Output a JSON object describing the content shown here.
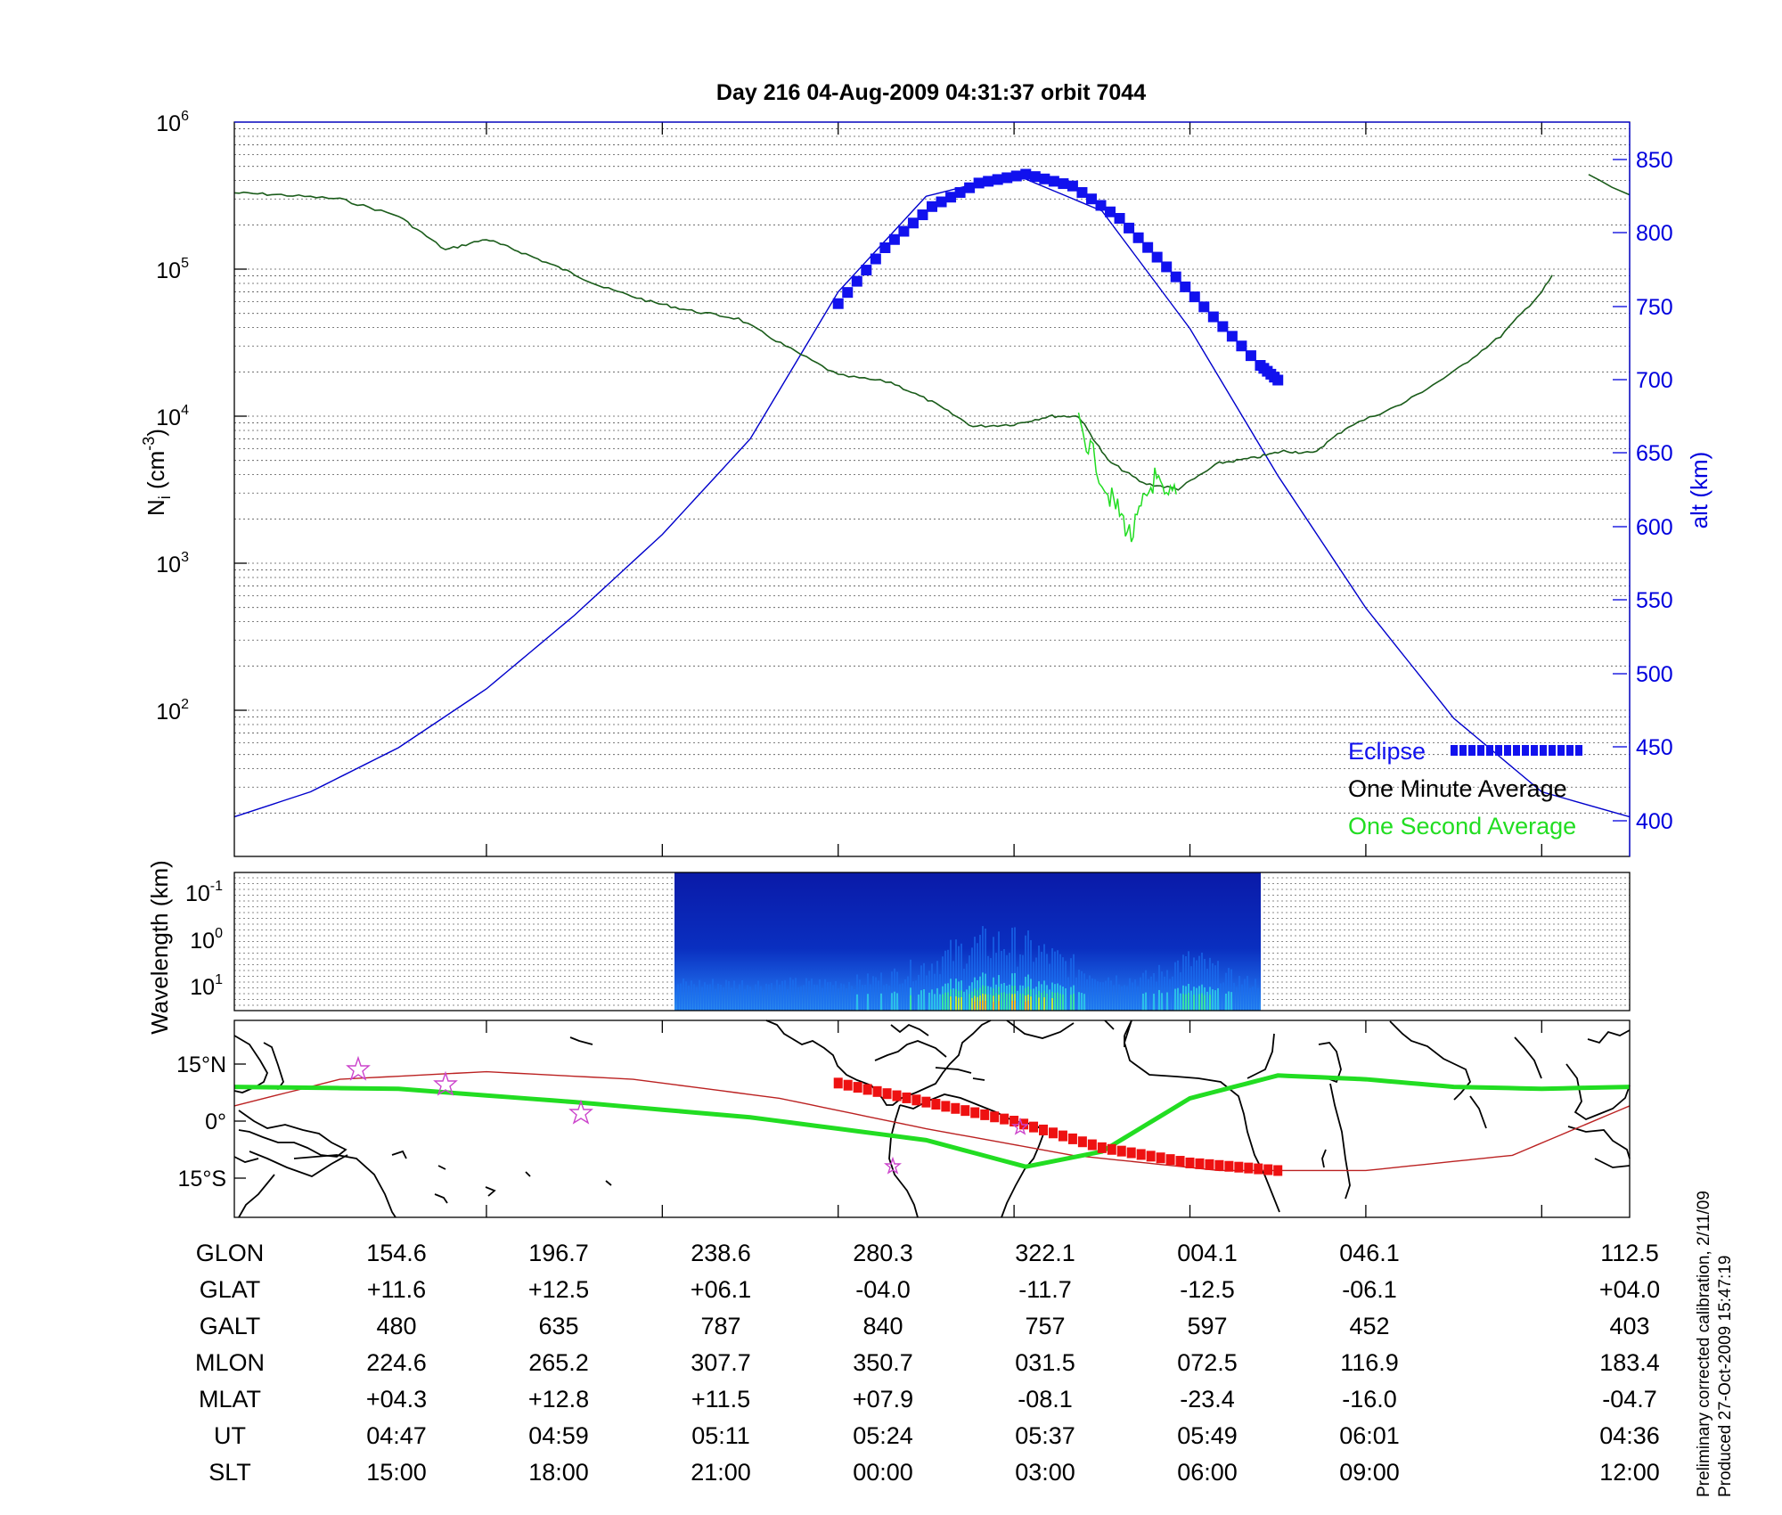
{
  "title": "Day 216  04-Aug-2009 04:31:37   orbit 7044",
  "colors": {
    "density_minute": "#1a5c1a",
    "density_second": "#22dd22",
    "altitude": "#0000cc",
    "eclipse": "#1111ee",
    "track": "#22dd22",
    "ref_track": "#bb2222",
    "track_eclipse": "#ee1111",
    "stars": "#cc44cc"
  },
  "top_panel": {
    "ylabel_base": "N",
    "ylabel_sub": "i",
    "ylabel_unit": " (cm",
    "ylabel_exp": "-3",
    "ylabel_end": ")",
    "y_ticks": [
      {
        "base": "10",
        "exp": "6",
        "log": 6
      },
      {
        "base": "10",
        "exp": "5",
        "log": 5
      },
      {
        "base": "10",
        "exp": "4",
        "log": 4
      },
      {
        "base": "10",
        "exp": "3",
        "log": 3
      },
      {
        "base": "10",
        "exp": "2",
        "log": 2
      }
    ],
    "right_label": "alt (km)",
    "right_ticks": [
      "850",
      "800",
      "750",
      "700",
      "650",
      "600",
      "550",
      "500",
      "450",
      "400"
    ],
    "legend": {
      "eclipse": "Eclipse",
      "minute": "One Minute Average",
      "second": "One Second Average"
    }
  },
  "middle_panel": {
    "ylabel": "Wavelength (km)",
    "y_ticks": [
      {
        "base": "10",
        "exp": "-1"
      },
      {
        "base": "10",
        "exp": "0"
      },
      {
        "base": "10",
        "exp": "1"
      }
    ]
  },
  "map_panel": {
    "lat_ticks": [
      "15°N",
      "0°",
      "15°S"
    ]
  },
  "table": {
    "row_labels": [
      "GLON",
      "GLAT",
      "GALT",
      "MLON",
      "MLAT",
      "UT",
      "SLT"
    ],
    "columns": [
      [
        "154.6",
        "+11.6",
        "480",
        "224.6",
        "+04.3",
        "04:47",
        "15:00"
      ],
      [
        "196.7",
        "+12.5",
        "635",
        "265.2",
        "+12.8",
        "04:59",
        "18:00"
      ],
      [
        "238.6",
        "+06.1",
        "787",
        "307.7",
        "+11.5",
        "05:11",
        "21:00"
      ],
      [
        "280.3",
        "-04.0",
        "840",
        "350.7",
        "+07.9",
        "05:24",
        "00:00"
      ],
      [
        "322.1",
        "-11.7",
        "757",
        "031.5",
        "-08.1",
        "05:37",
        "03:00"
      ],
      [
        "004.1",
        "-12.5",
        "597",
        "072.5",
        "-23.4",
        "05:49",
        "06:00"
      ],
      [
        "046.1",
        "-06.1",
        "452",
        "116.9",
        "-16.0",
        "06:01",
        "09:00"
      ],
      [
        "112.5",
        "+04.0",
        "403",
        "183.4",
        "-04.7",
        "04:36",
        "12:00"
      ]
    ]
  },
  "side_note": {
    "line1": "Preliminary corrected calibration, 2/11/09",
    "line2": "Produced 27-Oct-2009 15:47:19"
  },
  "chart_data": [
    {
      "type": "line",
      "title": "Day 216  04-Aug-2009 04:31:37   orbit 7044",
      "ylabel": "Ni (cm-3)",
      "yscale": "log",
      "ylim": [
        20,
        1000000
      ],
      "y2label": "alt (km)",
      "y2lim": [
        395,
        875
      ],
      "x_tick_labels": [
        "15:00",
        "18:00",
        "21:00",
        "00:00",
        "03:00",
        "06:00",
        "09:00",
        "12:00"
      ],
      "series": [
        {
          "name": "One Minute Average",
          "x_slt": [
            10.7,
            11.5,
            12.5,
            13.5,
            14.3,
            15.0,
            15.6,
            16.3,
            17.0,
            17.8,
            18.5,
            19.3,
            20.1,
            21.0,
            21.9,
            22.6,
            23.3,
            24.0,
            24.6,
            25.1,
            25.6,
            26.2,
            26.8,
            27.5,
            28.1,
            28.6,
            29.1,
            29.7,
            30.6,
            31.5,
            32.3,
            33.0,
            33.6,
            34.3
          ],
          "y_ni": [
            330000,
            320000,
            300000,
            230000,
            135000,
            160000,
            130000,
            100000,
            75000,
            60000,
            52000,
            46000,
            30000,
            19000,
            17000,
            12500,
            8500,
            8800,
            10000,
            10000,
            5000,
            3500,
            3200,
            4800,
            5200,
            5800,
            5600,
            8500,
            12000,
            20000,
            35000,
            70000,
            160000,
            300000
          ]
        },
        {
          "name": "One Second Average",
          "x_slt": [
            25.1,
            25.3,
            25.6,
            25.8,
            26.0,
            26.2,
            26.4,
            26.6,
            26.8
          ],
          "y_ni": [
            9000,
            6000,
            3000,
            2200,
            1500,
            2500,
            3800,
            2600,
            3500
          ]
        },
        {
          "name": "alt",
          "x_slt": [
            10.7,
            12.0,
            13.5,
            15.0,
            16.5,
            18.0,
            19.5,
            21.0,
            22.5,
            24.0,
            25.5,
            27.0,
            28.5,
            30.0,
            31.5,
            33.0,
            34.5
          ],
          "y_alt_km": [
            403,
            420,
            450,
            490,
            540,
            595,
            660,
            760,
            825,
            840,
            815,
            735,
            635,
            545,
            470,
            420,
            403
          ]
        },
        {
          "name": "Eclipse",
          "x_slt": [
            21.0,
            21.8,
            22.6,
            23.4,
            24.2,
            25.0,
            25.8,
            26.6,
            27.4,
            28.2,
            28.5
          ],
          "y_alt_km": [
            752,
            790,
            818,
            834,
            840,
            832,
            810,
            777,
            743,
            710,
            700
          ]
        }
      ]
    },
    {
      "type": "heatmap",
      "ylabel": "Wavelength (km)",
      "y_ticks": [
        "10-1",
        "100",
        "101"
      ],
      "data_coverage_slt": [
        21.0,
        29.6
      ]
    },
    {
      "type": "line",
      "ylabel": "latitude",
      "y_ticks": [
        "15°N",
        "0°",
        "15°S"
      ],
      "ylim": [
        -25,
        25
      ],
      "series": [
        {
          "name": "track",
          "x_slt": [
            10.7,
            13.5,
            16.5,
            19.5,
            22.5,
            24.2,
            25.5,
            27.0,
            28.5,
            30.0,
            31.5,
            33.0,
            34.5
          ],
          "y_lat": [
            9,
            8.5,
            5,
            1,
            -5,
            -12,
            -8,
            6,
            12,
            11,
            9,
            8.5,
            9
          ]
        },
        {
          "name": "reference",
          "x_slt": [
            10.7,
            12.5,
            15.0,
            17.5,
            20.0,
            22.5,
            25.0,
            27.5,
            30.0,
            32.5,
            34.5
          ],
          "y_lat": [
            4,
            11,
            13,
            11,
            6,
            -2,
            -9,
            -13,
            -13,
            -9,
            4
          ]
        },
        {
          "name": "eclipse track",
          "x_slt": [
            21.0,
            22.5,
            24.0,
            25.5,
            27.0,
            28.5
          ],
          "y_lat": [
            10,
            5,
            0,
            -7,
            -11,
            -13
          ]
        }
      ]
    }
  ]
}
